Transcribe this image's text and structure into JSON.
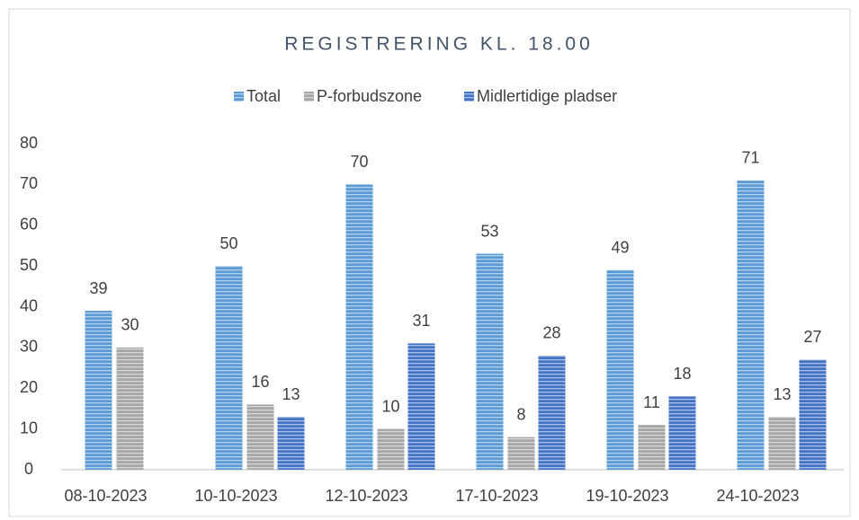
{
  "chart_data": {
    "type": "bar",
    "title": "REGISTRERING KL. 18.00",
    "categories": [
      "08-10-2023",
      "10-10-2023",
      "12-10-2023",
      "17-10-2023",
      "19-10-2023",
      "24-10-2023"
    ],
    "series": [
      {
        "name": "Total",
        "color": "#5b9bd5",
        "values": [
          39,
          50,
          70,
          53,
          49,
          71
        ]
      },
      {
        "name": "P-forbudszone",
        "color": "#a5a5a5",
        "values": [
          30,
          16,
          10,
          8,
          11,
          13
        ]
      },
      {
        "name": "Midlertidige pladser",
        "color": "#4472c4",
        "values": [
          null,
          13,
          31,
          28,
          18,
          27
        ]
      }
    ],
    "ylim": [
      0,
      80
    ],
    "yticks": [
      0,
      10,
      20,
      30,
      40,
      50,
      60,
      70,
      80
    ],
    "grid": false,
    "legend": "top"
  }
}
